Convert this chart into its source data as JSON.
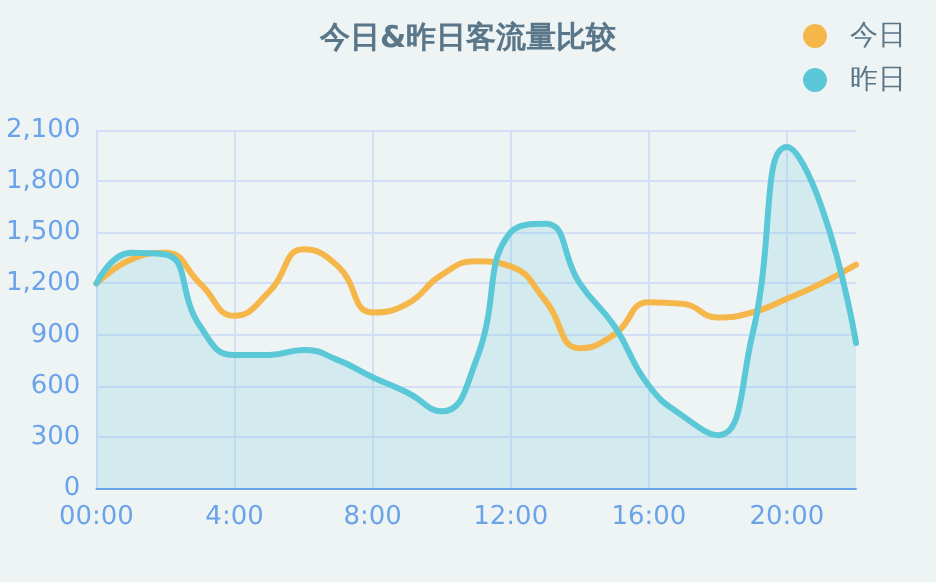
{
  "chart_data": {
    "type": "line",
    "title": "今日&昨日客流量比较",
    "x": [
      0,
      1,
      2,
      3,
      4,
      5,
      6,
      7,
      8,
      9,
      10,
      11,
      12,
      13,
      14,
      15,
      16,
      17,
      18,
      19,
      20,
      21,
      22
    ],
    "series": [
      {
        "name": "今日",
        "color": "#f5b74a",
        "values": [
          1200,
          1340,
          1380,
          1200,
          1010,
          1150,
          1400,
          1300,
          1030,
          1080,
          1250,
          1330,
          1300,
          1100,
          820,
          900,
          1090,
          1080,
          1000,
          1030,
          1110,
          1200,
          1310
        ]
      },
      {
        "name": "昨日",
        "type": "area",
        "color": "#5bc8d8",
        "values": [
          1200,
          1380,
          1370,
          950,
          780,
          780,
          810,
          750,
          650,
          560,
          450,
          750,
          1500,
          1550,
          1200,
          950,
          600,
          420,
          310,
          900,
          2000,
          1650,
          850
        ]
      }
    ],
    "xlim": [
      0,
      22
    ],
    "xticks": [
      {
        "value": 0,
        "label": "00:00"
      },
      {
        "value": 4,
        "label": "4:00"
      },
      {
        "value": 8,
        "label": "8:00"
      },
      {
        "value": 12,
        "label": "12:00"
      },
      {
        "value": 16,
        "label": "16:00"
      },
      {
        "value": 20,
        "label": "20:00"
      }
    ],
    "ylim": [
      0,
      2100
    ],
    "yticks": [
      0,
      300,
      600,
      900,
      {
        "value": 1200,
        "label": "1,200"
      },
      {
        "value": 1500,
        "label": "1,500"
      },
      {
        "value": 1800,
        "label": "1,800"
      },
      {
        "value": 2100,
        "label": "2,100"
      }
    ],
    "grid": true,
    "legend": "top right",
    "marker": "none"
  }
}
